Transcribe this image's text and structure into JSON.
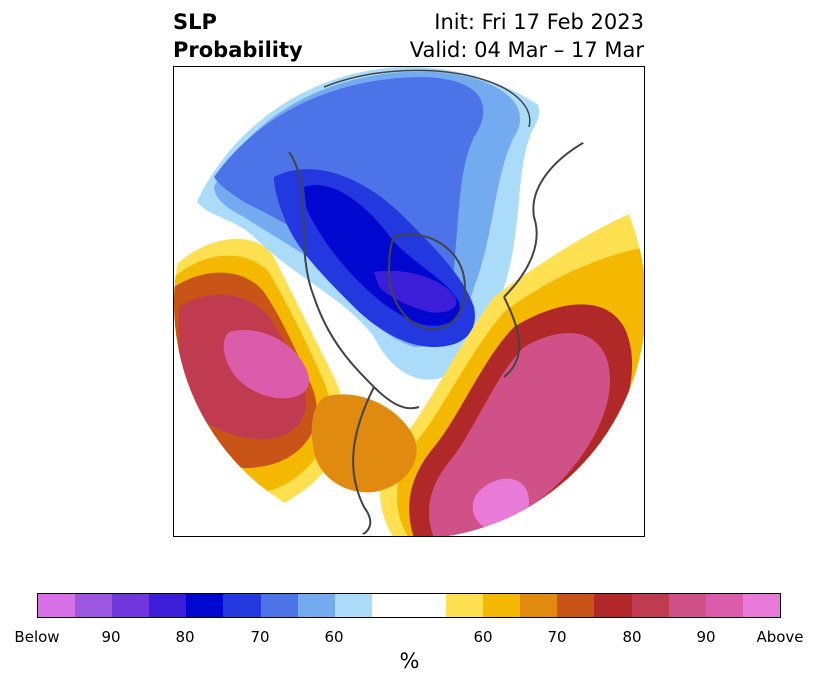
{
  "header": {
    "title_line1": "SLP",
    "title_line2": "Probability",
    "init_text": "Init: Fri 17 Feb 2023",
    "valid_text": "Valid: 04 Mar – 17 Mar"
  },
  "map": {
    "projection": "north-polar-stereographic",
    "variable": "SLP probability anomaly"
  },
  "colorbar": {
    "label": "%",
    "colors": [
      "#d870e8",
      "#9c58e0",
      "#7038dc",
      "#3c1ed8",
      "#0008d0",
      "#2438e0",
      "#4c74e8",
      "#74aaf0",
      "#aadcfa",
      "#ffffff",
      "#ffe050",
      "#f4b800",
      "#e08a10",
      "#c85418",
      "#b02828",
      "#c03a50",
      "#d05088",
      "#dc5cac",
      "#e87ad8"
    ],
    "ticks": [
      "Below",
      "90",
      "80",
      "70",
      "60",
      "60",
      "70",
      "80",
      "90",
      "Above"
    ]
  }
}
